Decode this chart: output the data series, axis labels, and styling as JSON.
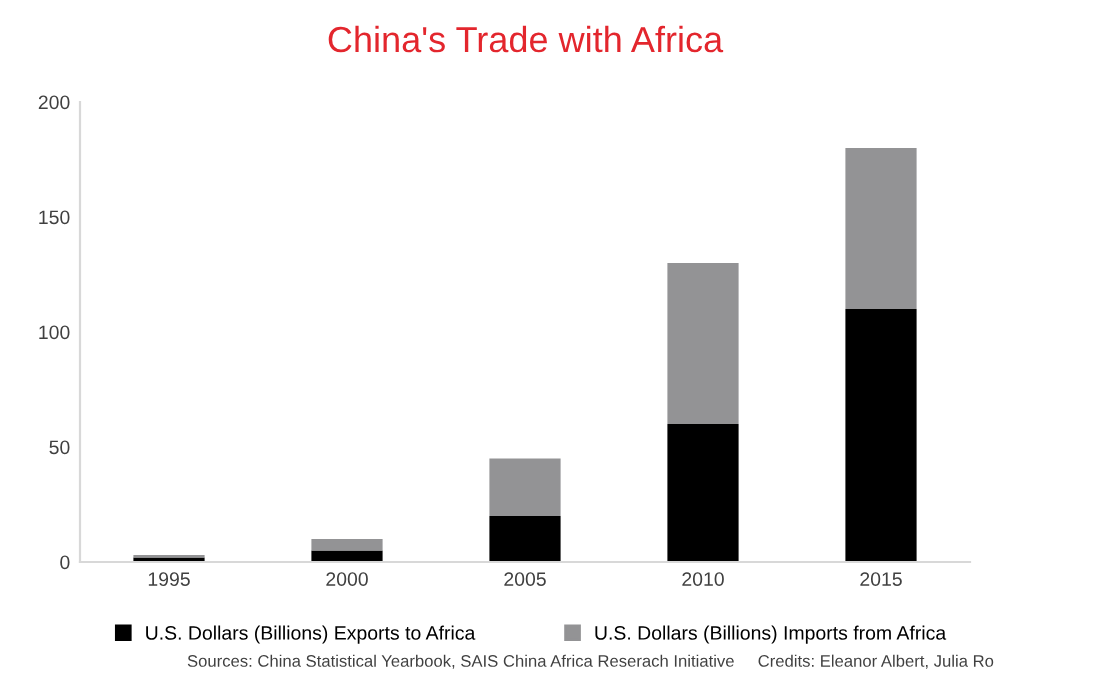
{
  "chart_data": {
    "type": "bar",
    "title": "China's Trade with Africa",
    "categories": [
      "1995",
      "2000",
      "2005",
      "2010",
      "2015"
    ],
    "series": [
      {
        "name": "U.S. Dollars (Billions) Exports to Africa",
        "color": "#000000",
        "values": [
          2,
          5,
          20,
          60,
          110
        ]
      },
      {
        "name": "U.S. Dollars (Billions) Imports from Africa",
        "color": "#939395",
        "values": [
          1,
          5,
          25,
          70,
          70
        ]
      }
    ],
    "stacked": true,
    "ylim": [
      0,
      200
    ],
    "yticks": [
      0,
      50,
      100,
      150,
      200
    ],
    "grid": false,
    "legend": "bottom",
    "annotations": [
      "Sources: China Statistical Yearbook, SAIS China Africa Reserach Initiative     Credits: Eleanor Albert, Julia Ro"
    ]
  }
}
